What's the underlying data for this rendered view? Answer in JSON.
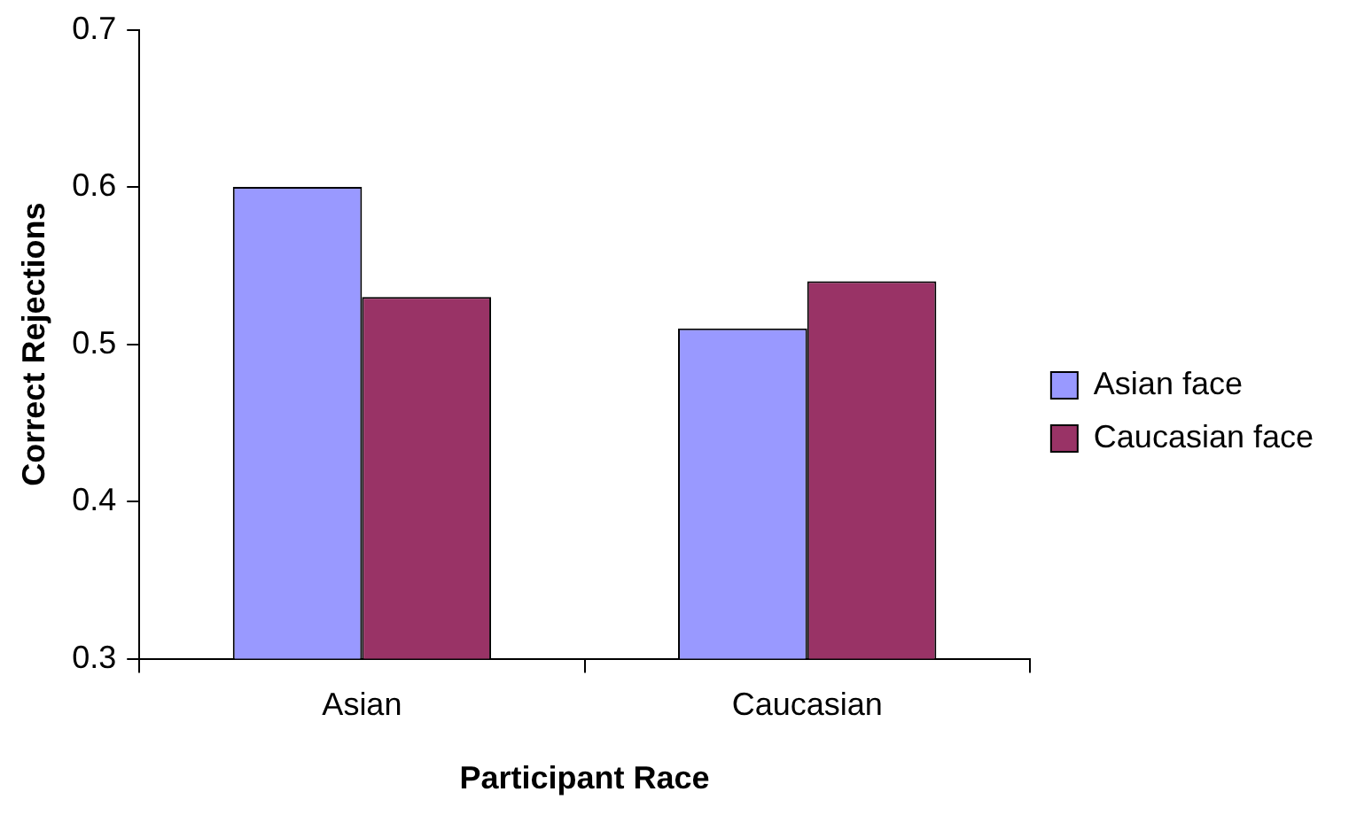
{
  "chart_data": {
    "type": "bar",
    "xlabel": "Participant Race",
    "ylabel": "Correct Rejections",
    "categories": [
      "Asian",
      "Caucasian"
    ],
    "series": [
      {
        "name": "Asian face",
        "color": "#9999ff",
        "values": [
          0.6,
          0.51
        ]
      },
      {
        "name": "Caucasian face",
        "color": "#993366",
        "values": [
          0.53,
          0.54
        ]
      }
    ],
    "ylim": [
      0.3,
      0.7
    ],
    "yticks": [
      0.3,
      0.4,
      0.5,
      0.6,
      0.7
    ],
    "legend": "right"
  }
}
